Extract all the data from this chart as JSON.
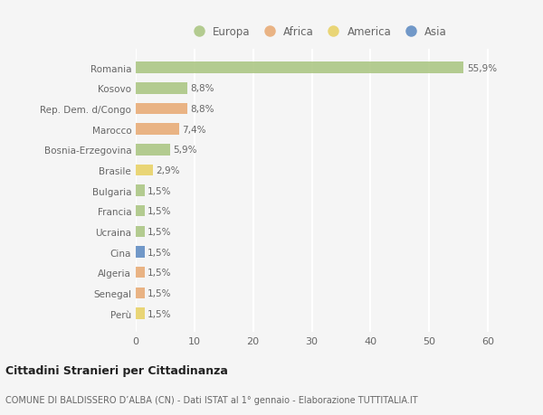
{
  "countries": [
    "Romania",
    "Kosovo",
    "Rep. Dem. d/Congo",
    "Marocco",
    "Bosnia-Erzegovina",
    "Brasile",
    "Bulgaria",
    "Francia",
    "Ucraina",
    "Cina",
    "Algeria",
    "Senegal",
    "Perù"
  ],
  "values": [
    55.9,
    8.8,
    8.8,
    7.4,
    5.9,
    2.9,
    1.5,
    1.5,
    1.5,
    1.5,
    1.5,
    1.5,
    1.5
  ],
  "labels": [
    "55,9%",
    "8,8%",
    "8,8%",
    "7,4%",
    "5,9%",
    "2,9%",
    "1,5%",
    "1,5%",
    "1,5%",
    "1,5%",
    "1,5%",
    "1,5%",
    "1,5%"
  ],
  "continents": [
    "Europa",
    "Europa",
    "Africa",
    "Africa",
    "Europa",
    "America",
    "Europa",
    "Europa",
    "Europa",
    "Asia",
    "Africa",
    "Africa",
    "America"
  ],
  "colors": {
    "Europa": "#a8c47e",
    "Africa": "#e8a870",
    "America": "#e8d060",
    "Asia": "#5a88c0"
  },
  "xlim": [
    0,
    62
  ],
  "xticks": [
    0,
    10,
    20,
    30,
    40,
    50,
    60
  ],
  "title": "Cittadini Stranieri per Cittadinanza",
  "subtitle": "COMUNE DI BALDISSERO D’ALBA (CN) - Dati ISTAT al 1° gennaio - Elaborazione TUTTITALIA.IT",
  "background_color": "#f5f5f5",
  "bar_height": 0.55,
  "grid_color": "#ffffff",
  "text_color": "#666666",
  "label_fontsize": 7.5,
  "ytick_fontsize": 7.5,
  "xtick_fontsize": 8,
  "legend_fontsize": 8.5,
  "title_fontsize": 9,
  "subtitle_fontsize": 7,
  "legend_circle_size": 80
}
